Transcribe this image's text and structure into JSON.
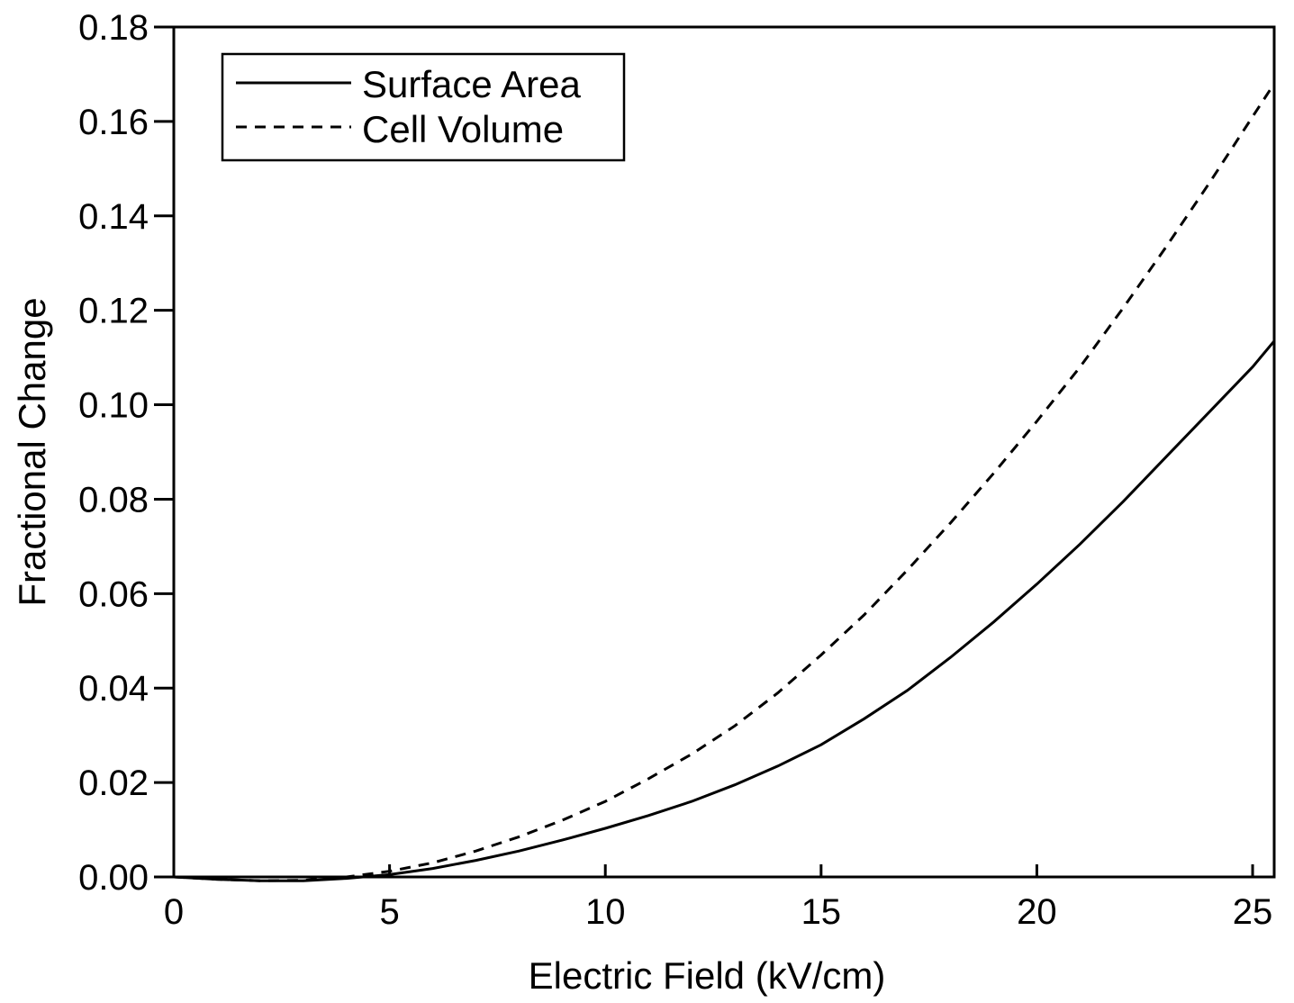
{
  "chart_data": {
    "type": "line",
    "title": "",
    "xlabel": "Electric Field (kV/cm)",
    "ylabel": "Fractional Change",
    "xlim": [
      0,
      25.5
    ],
    "ylim": [
      0,
      0.18
    ],
    "grid": false,
    "legend_position": "top-left",
    "x_ticks": [
      0,
      5,
      10,
      15,
      20,
      25
    ],
    "x_tick_labels": [
      "0",
      "5",
      "10",
      "15",
      "20",
      "25"
    ],
    "y_ticks": [
      0,
      0.02,
      0.04,
      0.06,
      0.08,
      0.1,
      0.12,
      0.14,
      0.16,
      0.18
    ],
    "y_tick_labels": [
      "0.00",
      "0.02",
      "0.04",
      "0.06",
      "0.08",
      "0.10",
      "0.12",
      "0.14",
      "0.16",
      "0.18"
    ],
    "series": [
      {
        "name": "Surface Area",
        "style": "solid",
        "x": [
          0,
          1,
          2,
          3,
          4,
          5,
          6,
          7,
          8,
          9,
          10,
          11,
          12,
          13,
          14,
          15,
          16,
          17,
          18,
          19,
          20,
          21,
          22,
          23,
          24,
          25,
          25.5
        ],
        "y": [
          0,
          -0.0005,
          -0.0008,
          -0.0008,
          -0.0003,
          0.0005,
          0.0018,
          0.0035,
          0.0055,
          0.0078,
          0.0103,
          0.013,
          0.016,
          0.0195,
          0.0235,
          0.028,
          0.0335,
          0.0395,
          0.0465,
          0.054,
          0.062,
          0.0705,
          0.0795,
          0.089,
          0.0985,
          0.108,
          0.1135
        ]
      },
      {
        "name": "Cell Volume",
        "style": "dashed",
        "x": [
          0,
          1,
          2,
          3,
          4,
          5,
          6,
          7,
          8,
          9,
          10,
          11,
          12,
          13,
          14,
          15,
          16,
          17,
          18,
          19,
          20,
          21,
          22,
          23,
          24,
          25,
          25.5
        ],
        "y": [
          0,
          -0.0005,
          -0.0008,
          -0.0007,
          0,
          0.0012,
          0.003,
          0.0055,
          0.0085,
          0.012,
          0.016,
          0.0208,
          0.026,
          0.032,
          0.039,
          0.047,
          0.0555,
          0.065,
          0.075,
          0.0855,
          0.0965,
          0.108,
          0.1205,
          0.1335,
          0.147,
          0.161,
          0.168
        ]
      }
    ]
  }
}
